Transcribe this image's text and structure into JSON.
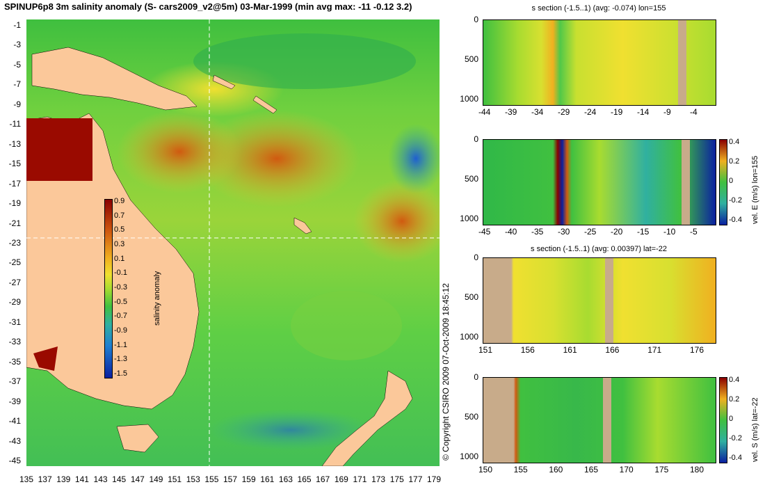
{
  "title": "SPINUP6p8 3m salinity anomaly (S- cars2009_v2@5m) 03-Mar-1999 (min avg max: -11 -0.12 3.2)",
  "map": {
    "y_ticks": [
      "-1",
      "-3",
      "-5",
      "-7",
      "-9",
      "-11",
      "-13",
      "-15",
      "-17",
      "-19",
      "-21",
      "-23",
      "-25",
      "-27",
      "-29",
      "-31",
      "-33",
      "-35",
      "-37",
      "-39",
      "-41",
      "-43",
      "-45"
    ],
    "x_ticks": [
      "135",
      "137",
      "139",
      "141",
      "143",
      "145",
      "147",
      "149",
      "151",
      "153",
      "155",
      "157",
      "159",
      "161",
      "163",
      "165",
      "167",
      "169",
      "171",
      "173",
      "175",
      "177",
      "179"
    ],
    "section_lon": 155,
    "section_lat": -22,
    "colorbar": {
      "label": "salinity anomaly",
      "ticks": [
        "0.9",
        "0.7",
        "0.5",
        "0.3",
        "0.1",
        "-0.1",
        "-0.3",
        "-0.5",
        "-0.7",
        "-0.9",
        "-1.1",
        "-1.3",
        "-1.5"
      ],
      "range": [
        -1.5,
        0.9
      ]
    }
  },
  "copyright": "© Copyright CSIRO 2009  07-Oct-2009 18:45:12",
  "panels": [
    {
      "title": "s section (-1.5..1) (avg: -0.074) lon=155",
      "x_ticks": [
        "-44",
        "-39",
        "-34",
        "-29",
        "-24",
        "-19",
        "-14",
        "-9",
        "-4"
      ],
      "y_ticks": [
        "0",
        "500",
        "1000"
      ],
      "colorbar_label": "",
      "colorbar_ticks": []
    },
    {
      "title": "",
      "x_ticks": [
        "-45",
        "-40",
        "-35",
        "-30",
        "-25",
        "-20",
        "-15",
        "-10",
        "-5"
      ],
      "y_ticks": [
        "0",
        "500",
        "1000"
      ],
      "colorbar_label": "vel. E (m/s) lon=155",
      "colorbar_ticks": [
        "0.4",
        "0.2",
        "0",
        "-0.2",
        "-0.4"
      ]
    },
    {
      "title": "s section (-1.5..1) (avg: 0.00397) lat=-22",
      "x_ticks": [
        "151",
        "156",
        "161",
        "166",
        "171",
        "176"
      ],
      "y_ticks": [
        "0",
        "500",
        "1000"
      ],
      "colorbar_label": "",
      "colorbar_ticks": []
    },
    {
      "title": "",
      "x_ticks": [
        "150",
        "155",
        "160",
        "165",
        "170",
        "175",
        "180"
      ],
      "y_ticks": [
        "0",
        "500",
        "1000"
      ],
      "colorbar_label": "vel. S (m/s) lat=-22",
      "colorbar_ticks": [
        "0.4",
        "0.2",
        "0",
        "-0.2",
        "-0.4"
      ]
    }
  ]
}
